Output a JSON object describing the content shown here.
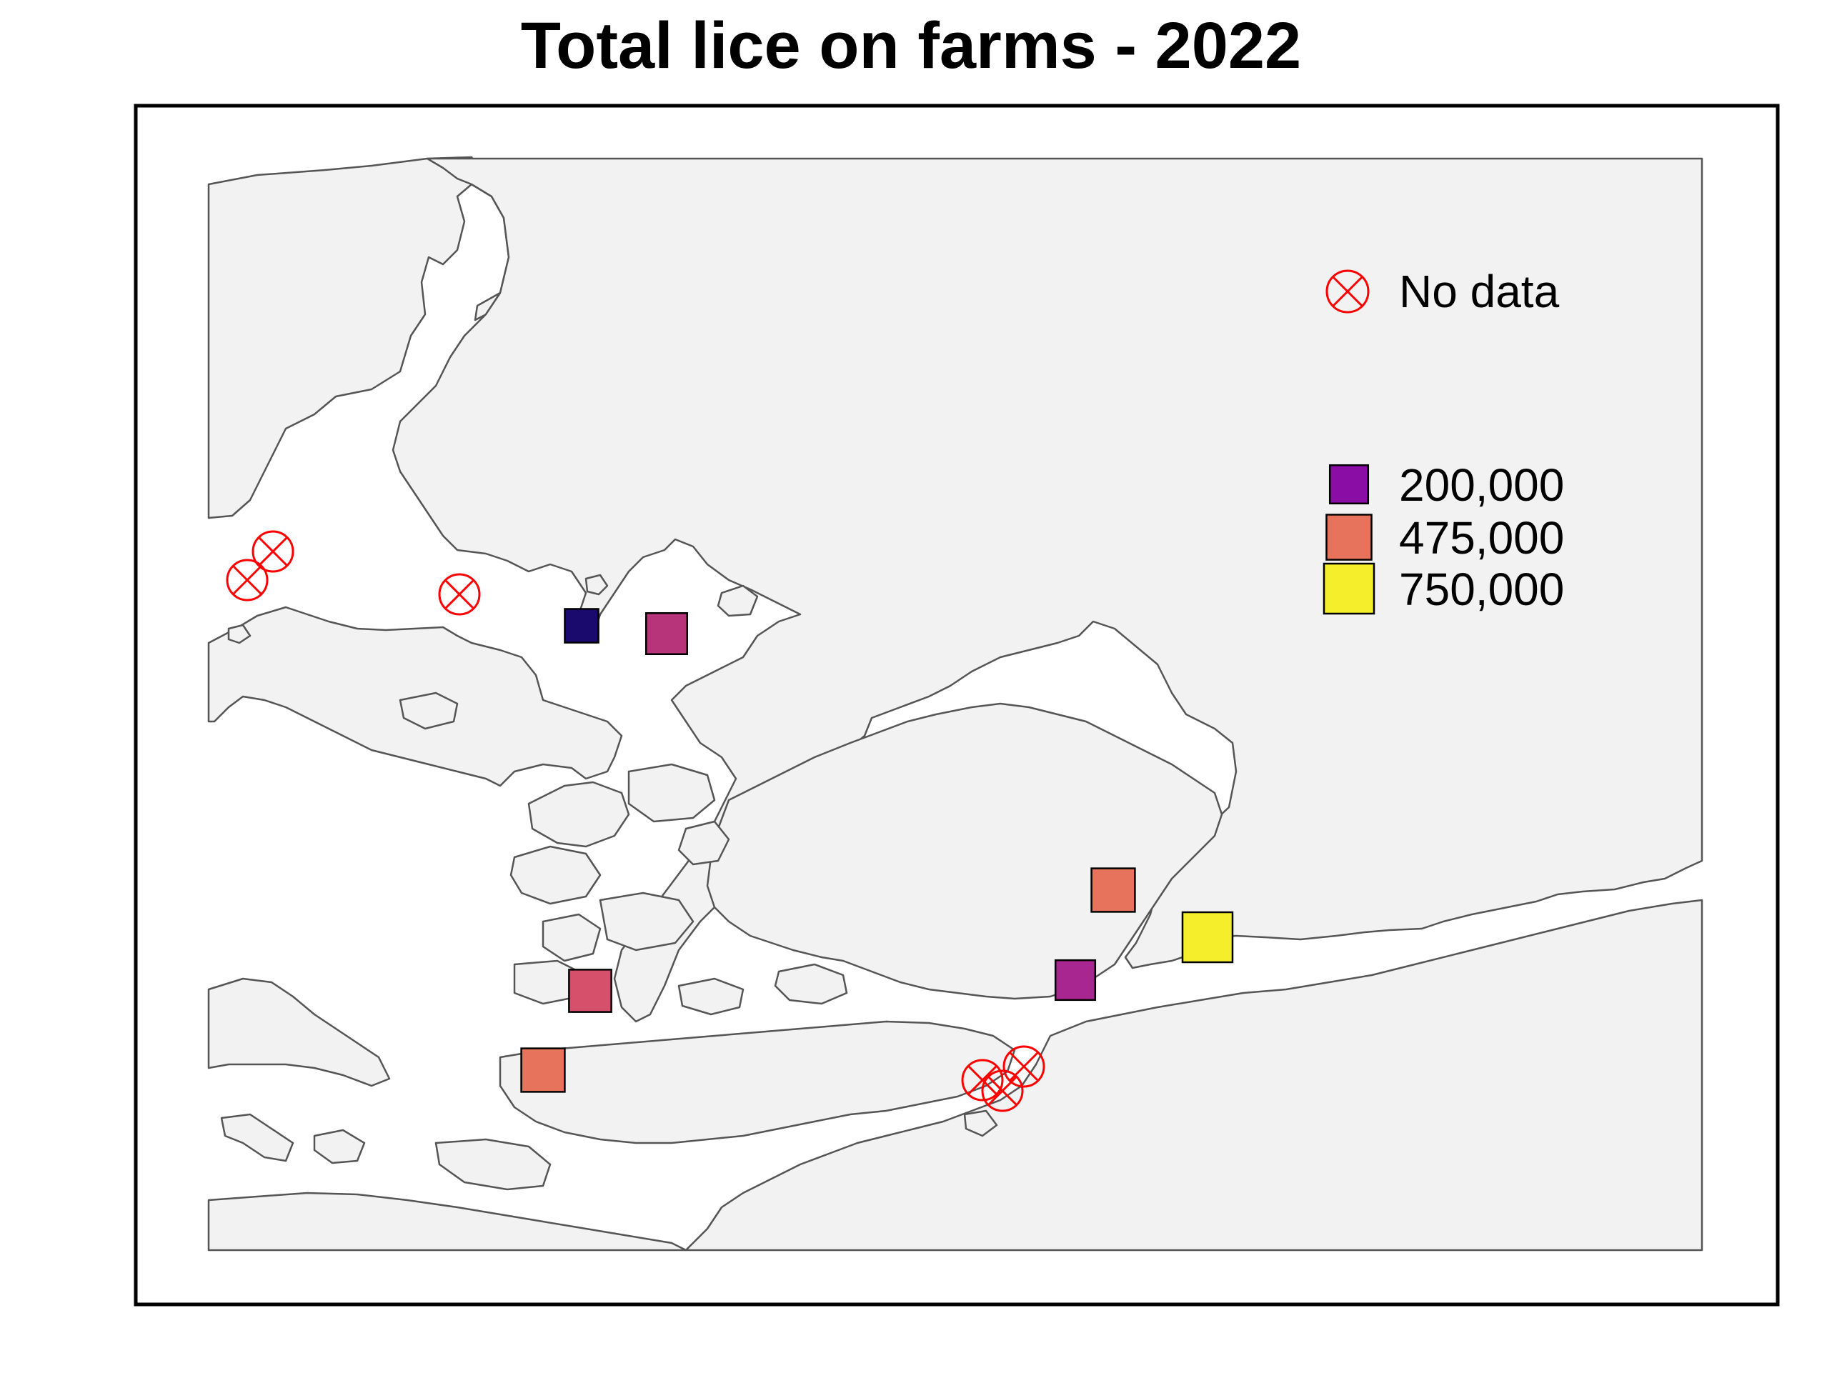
{
  "title": "Total lice on farms - 2022",
  "colors": {
    "land": "#f2f2f2",
    "coast": "#555555",
    "frame": "#000000",
    "no_data": "#ff0000"
  },
  "legend": {
    "no_data_label": "No data",
    "size_title": "",
    "entries": [
      {
        "label": "200,000",
        "value": 200000,
        "color": "#8a0ea6"
      },
      {
        "label": "475,000",
        "value": 475000,
        "color": "#e8735c"
      },
      {
        "label": "750,000",
        "value": 750000,
        "color": "#f4ef2a"
      }
    ]
  },
  "farms": [
    {
      "id": "farm-1",
      "lice": 80000,
      "color": "#1a0a6e",
      "status": "data"
    },
    {
      "id": "farm-2",
      "lice": 300000,
      "color": "#b8347a",
      "status": "data"
    },
    {
      "id": "farm-3",
      "lice": 400000,
      "color": "#e8735c",
      "status": "data"
    },
    {
      "id": "farm-4",
      "lice": 750000,
      "color": "#f4ef2a",
      "status": "data"
    },
    {
      "id": "farm-5",
      "lice": 250000,
      "color": "#a8268f",
      "status": "data"
    },
    {
      "id": "farm-6",
      "lice": 350000,
      "color": "#d6506b",
      "status": "data"
    },
    {
      "id": "farm-7",
      "lice": 400000,
      "color": "#e8735c",
      "status": "data"
    },
    {
      "id": "farm-8",
      "status": "no-data"
    },
    {
      "id": "farm-9",
      "status": "no-data"
    },
    {
      "id": "farm-10",
      "status": "no-data"
    },
    {
      "id": "farm-11",
      "status": "no-data"
    },
    {
      "id": "farm-12",
      "status": "no-data"
    },
    {
      "id": "farm-13",
      "status": "no-data"
    }
  ]
}
